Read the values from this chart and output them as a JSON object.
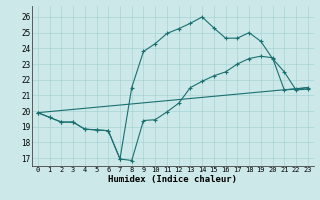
{
  "xlabel": "Humidex (Indice chaleur)",
  "xlim": [
    -0.5,
    23.5
  ],
  "ylim": [
    16.5,
    26.7
  ],
  "yticks": [
    17,
    18,
    19,
    20,
    21,
    22,
    23,
    24,
    25,
    26
  ],
  "xticks": [
    0,
    1,
    2,
    3,
    4,
    5,
    6,
    7,
    8,
    9,
    10,
    11,
    12,
    13,
    14,
    15,
    16,
    17,
    18,
    19,
    20,
    21,
    22,
    23
  ],
  "bg_color": "#cce8e8",
  "line_color": "#1a7070",
  "line1_x": [
    0,
    1,
    2,
    3,
    4,
    5,
    6,
    7,
    8,
    9,
    10,
    11,
    12,
    13,
    14,
    15,
    16,
    17,
    18,
    19,
    20,
    21,
    22,
    23
  ],
  "line1_y": [
    19.9,
    19.6,
    19.3,
    19.3,
    18.85,
    18.8,
    18.75,
    16.95,
    16.85,
    19.4,
    19.45,
    19.95,
    20.5,
    21.5,
    21.9,
    22.25,
    22.5,
    23.0,
    23.35,
    23.5,
    23.4,
    21.35,
    21.4,
    21.5
  ],
  "line2_x": [
    0,
    1,
    2,
    3,
    4,
    5,
    6,
    7,
    8,
    9,
    10,
    11,
    12,
    13,
    14,
    15,
    16,
    17,
    18,
    19,
    20,
    21,
    22,
    23
  ],
  "line2_y": [
    19.9,
    19.6,
    19.3,
    19.3,
    18.85,
    18.8,
    18.75,
    16.95,
    21.5,
    23.8,
    24.3,
    24.95,
    25.25,
    25.6,
    26.0,
    25.3,
    24.65,
    24.65,
    25.0,
    24.45,
    23.35,
    22.5,
    21.35,
    21.4
  ],
  "line3_x": [
    0,
    23
  ],
  "line3_y": [
    19.9,
    21.5
  ]
}
